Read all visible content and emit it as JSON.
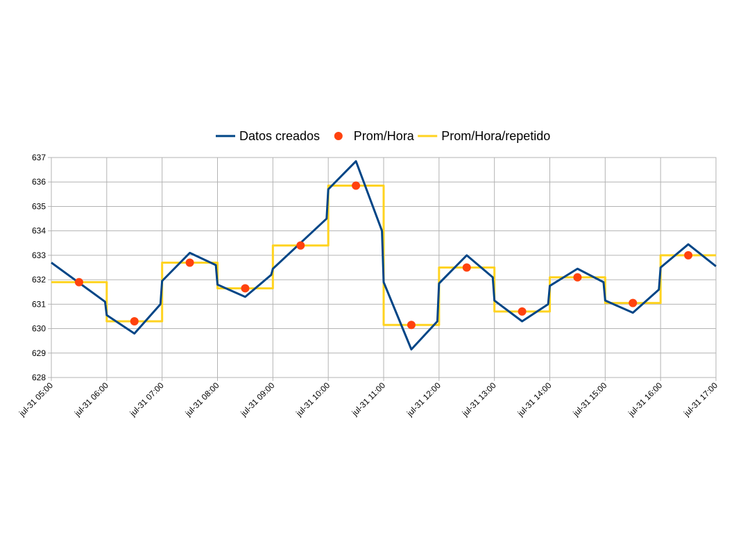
{
  "chart_data": {
    "type": "line",
    "xlim": [
      5,
      17
    ],
    "xticks": [
      {
        "value": 5,
        "label": "jul-31 05:00"
      },
      {
        "value": 6,
        "label": "jul-31 06:00"
      },
      {
        "value": 7,
        "label": "jul-31 07:00"
      },
      {
        "value": 8,
        "label": "jul-31 08:00"
      },
      {
        "value": 9,
        "label": "jul-31 09:00"
      },
      {
        "value": 10,
        "label": "jul-31 10:00"
      },
      {
        "value": 11,
        "label": "jul-31 11:00"
      },
      {
        "value": 12,
        "label": "jul-31 12:00"
      },
      {
        "value": 13,
        "label": "jul-31 13:00"
      },
      {
        "value": 14,
        "label": "jul-31 14:00"
      },
      {
        "value": 15,
        "label": "jul-31 15:00"
      },
      {
        "value": 16,
        "label": "jul-31 16:00"
      },
      {
        "value": 17,
        "label": "jul-31 17:00"
      }
    ],
    "ylim": [
      628,
      637
    ],
    "yticks": [
      628,
      629,
      630,
      631,
      632,
      633,
      634,
      635,
      636,
      637
    ],
    "grid": true,
    "legend": "top",
    "series": [
      {
        "name": "Datos creados",
        "color": "#004586",
        "style": "line",
        "x": [
          5,
          5.97,
          6,
          6.5,
          6.97,
          7,
          7.5,
          7.97,
          8,
          8.5,
          8.97,
          9,
          9.97,
          10,
          10.5,
          10.97,
          11,
          11.5,
          11.97,
          12,
          12.5,
          12.97,
          13,
          13.5,
          13.97,
          14,
          14.5,
          14.97,
          15,
          15.5,
          15.97,
          16,
          16.5,
          17
        ],
        "values": [
          632.7,
          631.1,
          630.55,
          629.8,
          631.0,
          631.95,
          633.1,
          632.6,
          631.8,
          631.3,
          632.2,
          632.45,
          634.5,
          635.7,
          636.85,
          634.0,
          631.9,
          629.15,
          630.3,
          631.85,
          633.0,
          632.1,
          631.15,
          630.3,
          631.0,
          631.75,
          632.45,
          631.9,
          631.15,
          630.65,
          631.6,
          632.5,
          633.45,
          632.55
        ]
      },
      {
        "name": "Prom/Hora",
        "color": "#ff420e",
        "style": "markers",
        "x": [
          5.5,
          6.5,
          7.5,
          8.5,
          9.5,
          10.5,
          11.5,
          12.5,
          13.5,
          14.5,
          15.5,
          16.5
        ],
        "values": [
          631.9,
          630.3,
          632.7,
          631.65,
          633.4,
          635.85,
          630.15,
          632.5,
          630.7,
          632.1,
          631.05,
          633.0
        ]
      },
      {
        "name": "Prom/Hora/repetido",
        "color": "#ffd320",
        "style": "line",
        "x": [
          5,
          6,
          6,
          7,
          7,
          8,
          8,
          9,
          9,
          10,
          10,
          11,
          11,
          12,
          12,
          13,
          13,
          14,
          14,
          15,
          15,
          16,
          16,
          17
        ],
        "values": [
          631.9,
          631.9,
          630.3,
          630.3,
          632.7,
          632.7,
          631.65,
          631.65,
          633.4,
          633.4,
          635.85,
          635.85,
          630.15,
          630.15,
          632.5,
          632.5,
          630.7,
          630.7,
          632.1,
          632.1,
          631.05,
          631.05,
          633.0,
          633.0
        ]
      }
    ]
  }
}
